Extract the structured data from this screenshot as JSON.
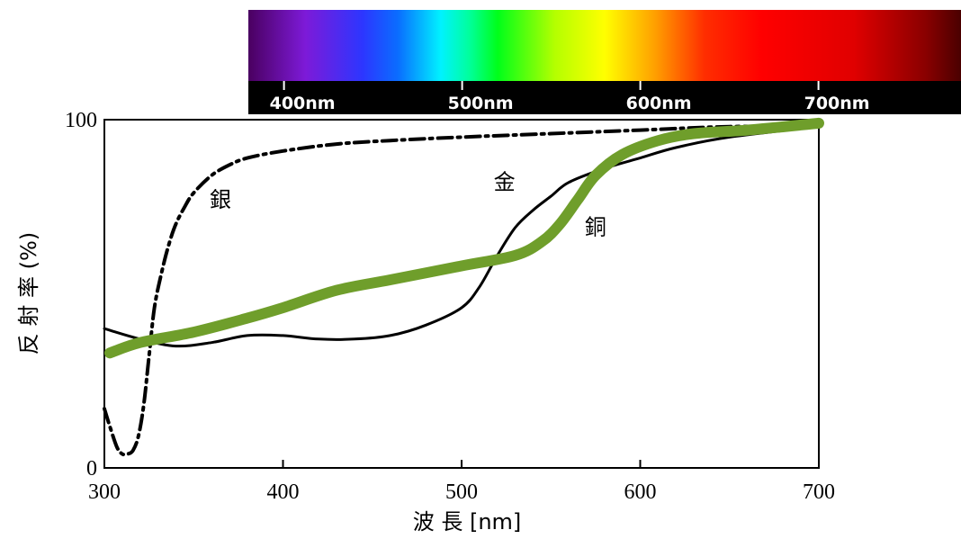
{
  "chart_data": {
    "type": "line",
    "title": "",
    "xlabel": "波 長 [nm]",
    "ylabel": "反 射 率 (%)",
    "xlim": [
      300,
      700
    ],
    "ylim": [
      0,
      100
    ],
    "x_ticks": [
      "300",
      "400",
      "500",
      "600",
      "700"
    ],
    "y_ticks": [
      "0",
      "100"
    ],
    "grid": false,
    "legend": "none",
    "spectrum_bar": {
      "range_nm": [
        380,
        780
      ],
      "labels": [
        "400nm",
        "500nm",
        "600nm",
        "700nm"
      ]
    },
    "series": [
      {
        "name": "銀",
        "style": "dash-dot",
        "color": "#000000",
        "x": [
          300,
          303,
          307,
          310,
          313,
          316,
          319,
          322,
          325,
          328,
          332,
          336,
          340,
          345,
          350,
          360,
          370,
          380,
          400,
          430,
          460,
          500,
          550,
          600,
          650,
          700
        ],
        "y": [
          17,
          12,
          6,
          4,
          4,
          5,
          9,
          18,
          32,
          46,
          56,
          64,
          70,
          75,
          79,
          84,
          87,
          89,
          91,
          93,
          94,
          95,
          96,
          97,
          98,
          98
        ]
      },
      {
        "name": "金",
        "style": "solid",
        "color": "#000000",
        "x": [
          300,
          320,
          340,
          360,
          380,
          400,
          420,
          440,
          460,
          480,
          500,
          510,
          520,
          530,
          540,
          550,
          560,
          580,
          600,
          620,
          650,
          700
        ],
        "y": [
          40,
          37,
          35,
          36,
          38,
          38,
          37,
          37,
          38,
          41,
          46,
          52,
          61,
          69,
          74,
          78,
          82,
          86,
          89,
          92,
          95,
          98
        ]
      },
      {
        "name": "銅",
        "style": "solid-thick",
        "color": "#6f9e2b",
        "x": [
          303,
          320,
          350,
          380,
          400,
          430,
          460,
          500,
          530,
          545,
          555,
          565,
          575,
          590,
          610,
          630,
          660,
          700
        ],
        "y": [
          33,
          36,
          39,
          43,
          46,
          51,
          54,
          58,
          61,
          65,
          70,
          77,
          84,
          90,
          94,
          96,
          97,
          99
        ]
      }
    ],
    "annotations": [
      {
        "text": "銀",
        "x": 365,
        "y": 75
      },
      {
        "text": "金",
        "x": 524,
        "y": 80
      },
      {
        "text": "銅",
        "x": 575,
        "y": 67
      }
    ]
  }
}
